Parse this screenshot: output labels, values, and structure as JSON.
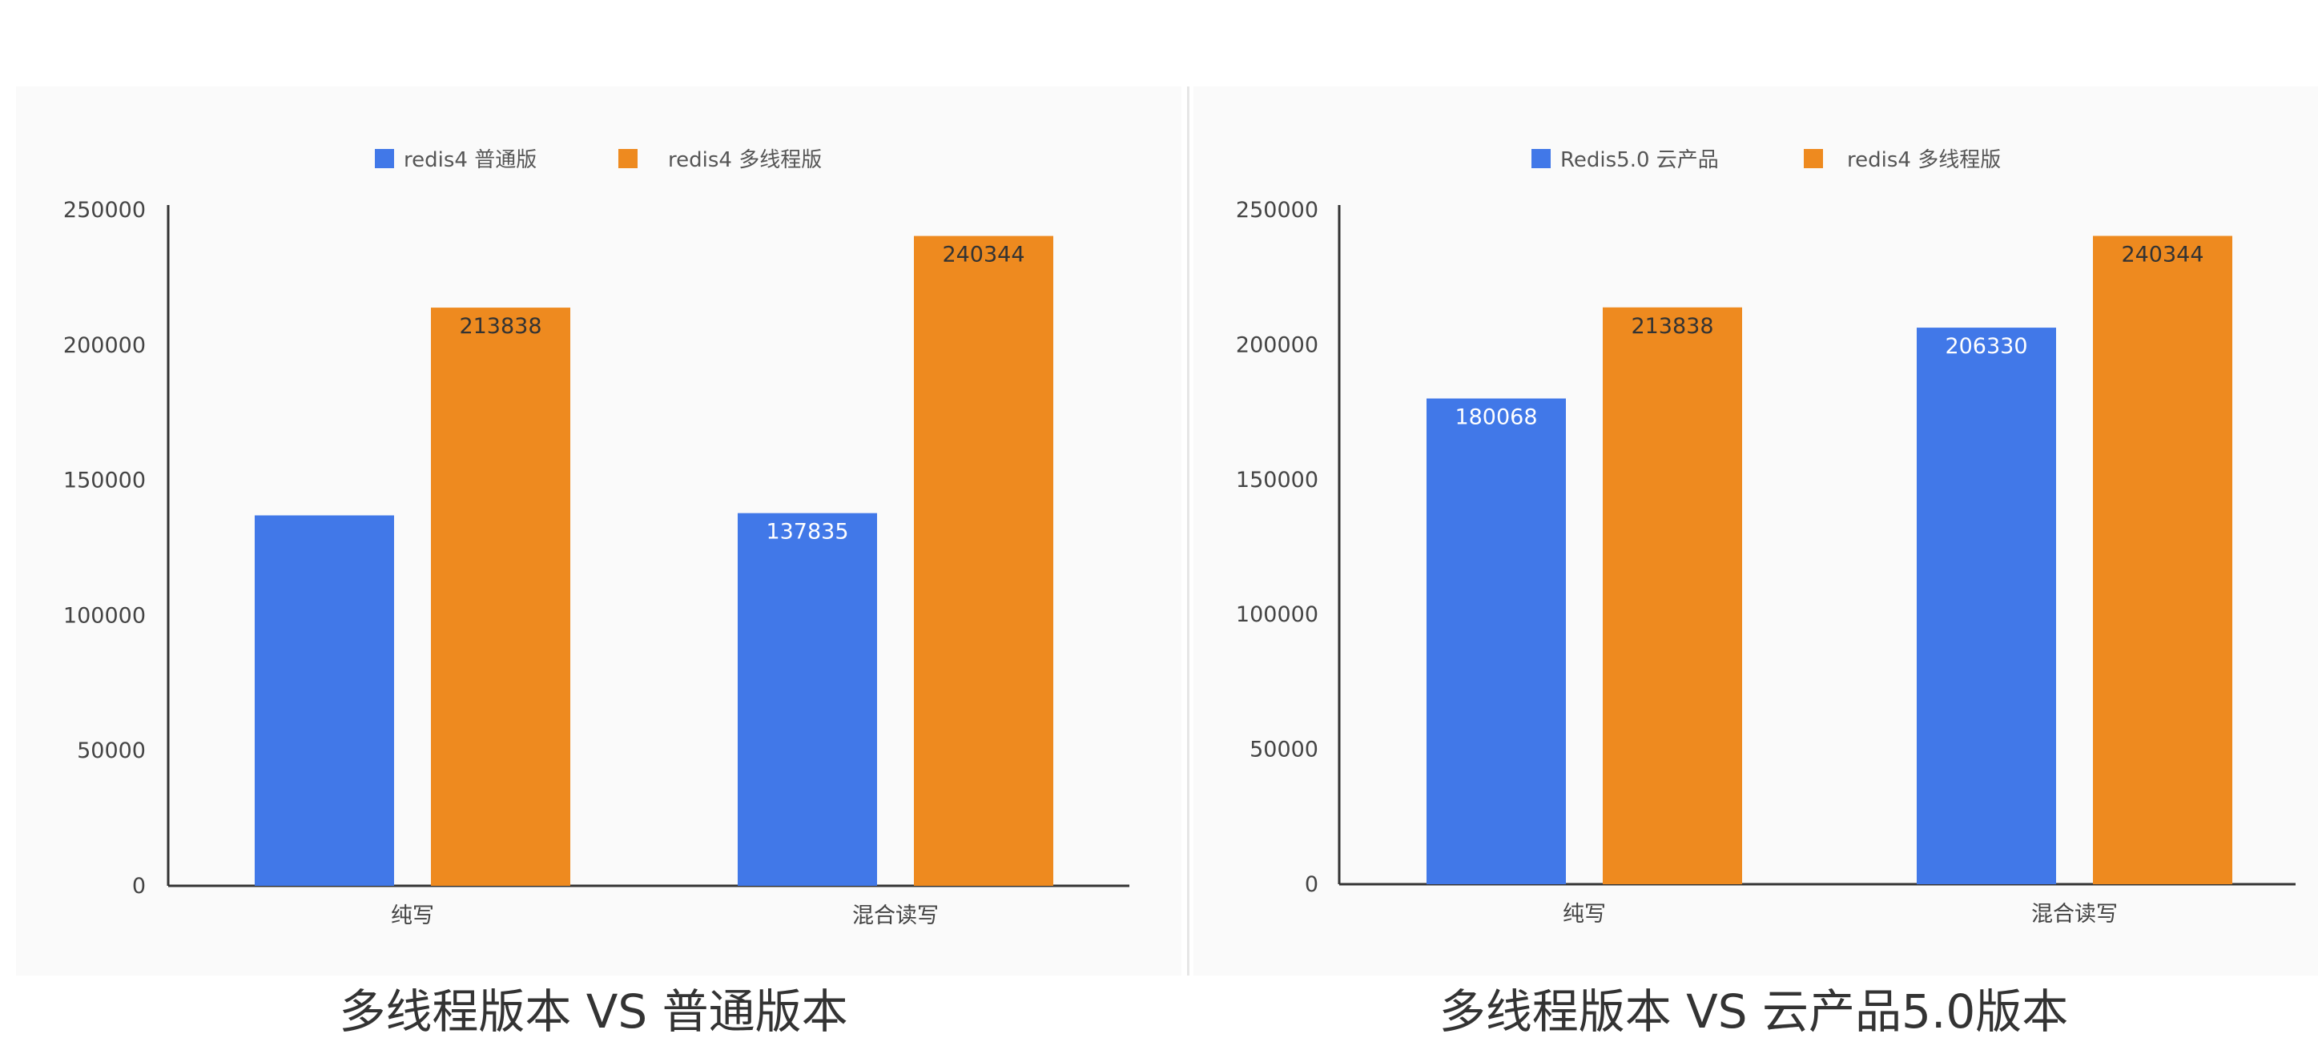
{
  "colors": {
    "series_blue": "#4178E8",
    "series_orange": "#EE8A1F",
    "axis": "#333333",
    "tick_text": "#444444"
  },
  "chart_data": [
    {
      "type": "bar",
      "categories": [
        "纯写",
        "混合读写"
      ],
      "series": [
        {
          "name": "redis4 普通版",
          "values": [
            137000,
            137835
          ],
          "labels": [
            "",
            "137835"
          ]
        },
        {
          "name": "redis4 多线程版",
          "values": [
            213838,
            240344
          ],
          "labels": [
            "213838",
            "240344"
          ]
        }
      ],
      "ylim": [
        0,
        250000
      ],
      "yticks": [
        "0",
        "50000",
        "100000",
        "150000",
        "200000",
        "250000"
      ],
      "legend_position": "top-center",
      "grid": false
    },
    {
      "type": "bar",
      "categories": [
        "纯写",
        "混合读写"
      ],
      "series": [
        {
          "name": "Redis5.0 云产品",
          "values": [
            180068,
            206330
          ],
          "labels": [
            "180068",
            "206330"
          ]
        },
        {
          "name": "redis4 多线程版",
          "values": [
            213838,
            240344
          ],
          "labels": [
            "213838",
            "240344"
          ]
        }
      ],
      "ylim": [
        0,
        250000
      ],
      "yticks": [
        "0",
        "50000",
        "100000",
        "150000",
        "200000",
        "250000"
      ],
      "legend_position": "top-center",
      "grid": false
    }
  ],
  "captions": {
    "left": "多线程版本 VS 普通版本",
    "right": "多线程版本 VS 云产品5.0版本"
  }
}
